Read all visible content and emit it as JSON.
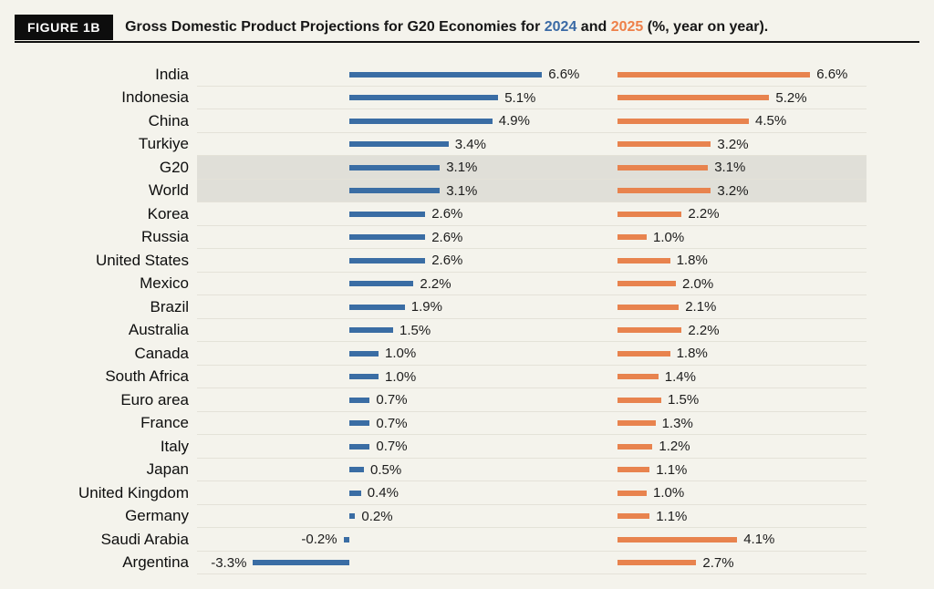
{
  "page": {
    "background": "#f4f3ec"
  },
  "header": {
    "figure_tag": "FIGURE 1B",
    "title_prefix": "Gross Domestic Product Projections for G20 Economies for ",
    "year_2024": "2024",
    "title_and": " and ",
    "year_2025": "2025",
    "title_suffix": " (%, year on year).",
    "accent_2024": "#3a6aa5",
    "accent_2025": "#ee8049"
  },
  "chart_data": {
    "type": "bar",
    "orientation": "horizontal",
    "title": "Gross Domestic Product Projections for G20 Economies for 2024 and 2025 (%, year on year).",
    "value_unit": "%, year on year",
    "categories": [
      "India",
      "Indonesia",
      "China",
      "Turkiye",
      "G20",
      "World",
      "Korea",
      "Russia",
      "United States",
      "Mexico",
      "Brazil",
      "Australia",
      "Canada",
      "South Africa",
      "Euro area",
      "France",
      "Italy",
      "Japan",
      "United Kingdom",
      "Germany",
      "Saudi Arabia",
      "Argentina"
    ],
    "series": [
      {
        "name": "2024",
        "color": "#3a6da4",
        "values": [
          6.6,
          5.1,
          4.9,
          3.4,
          3.1,
          3.1,
          2.6,
          2.6,
          2.6,
          2.2,
          1.9,
          1.5,
          1.0,
          1.0,
          0.7,
          0.7,
          0.7,
          0.5,
          0.4,
          0.2,
          -0.2,
          -3.3
        ],
        "labels": [
          "6.6%",
          "5.1%",
          "4.9%",
          "3.4%",
          "3.1%",
          "3.1%",
          "2.6%",
          "2.6%",
          "2.6%",
          "2.2%",
          "1.9%",
          "1.5%",
          "1.0%",
          "1.0%",
          "0.7%",
          "0.7%",
          "0.7%",
          "0.5%",
          "0.4%",
          "0.2%",
          "-0.2%",
          "-3.3%"
        ]
      },
      {
        "name": "2025",
        "color": "#e8834e",
        "values": [
          6.6,
          5.2,
          4.5,
          3.2,
          3.1,
          3.2,
          2.2,
          1.0,
          1.8,
          2.0,
          2.1,
          2.2,
          1.8,
          1.4,
          1.5,
          1.3,
          1.2,
          1.1,
          1.0,
          1.1,
          4.1,
          2.7
        ],
        "labels": [
          "6.6%",
          "5.2%",
          "4.5%",
          "3.2%",
          "3.1%",
          "3.2%",
          "2.2%",
          "1.0%",
          "1.8%",
          "2.0%",
          "2.1%",
          "2.2%",
          "1.8%",
          "1.4%",
          "1.5%",
          "1.3%",
          "1.2%",
          "1.1%",
          "1.0%",
          "1.1%",
          "4.1%",
          "2.7%"
        ],
        "negative_values": false
      }
    ],
    "highlighted_categories": [
      "G20",
      "World"
    ],
    "highlight_color": "#e0dfd8",
    "xlim": [
      -3.5,
      7.0
    ],
    "grid": false,
    "legend_position": "in-title"
  }
}
